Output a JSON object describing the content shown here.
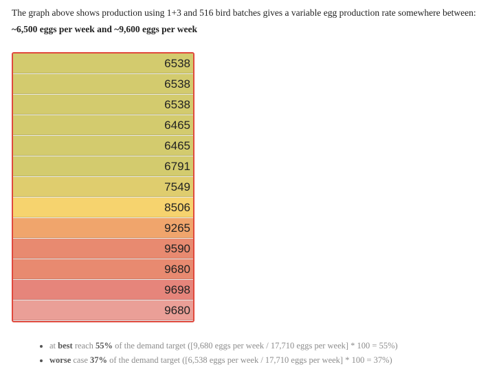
{
  "intro": {
    "line1": "The graph above shows production using 1+3 and 516 bird batches gives a variable egg production rate somewhere between:",
    "line2": "~6,500 eggs per week and ~9,600 eggs per week"
  },
  "chart_data": {
    "type": "table",
    "values": [
      6538,
      6538,
      6538,
      6465,
      6465,
      6791,
      7549,
      8506,
      9265,
      9590,
      9680,
      9698,
      9680
    ],
    "colors": [
      "#d3cb6e",
      "#d3cb6e",
      "#d3cb6e",
      "#d3cb6e",
      "#d3cb6e",
      "#d3cb6e",
      "#dfcd6e",
      "#f6d36e",
      "#f0a56c",
      "#e88a70",
      "#e88a70",
      "#e6857b",
      "#ea9f97"
    ]
  },
  "bullets": [
    {
      "strong": "best",
      "pre": "at ",
      "mid": " reach ",
      "pct": "55%",
      "post": " of the demand target ([9,680 eggs per week / 17,710 eggs per week] * 100 = 55%)"
    },
    {
      "strong": "worse",
      "pre": "",
      "mid": " case ",
      "pct": "37%",
      "post": " of the demand target ([6,538 eggs per week / 17,710 eggs per week] * 100 = 37%)"
    }
  ]
}
